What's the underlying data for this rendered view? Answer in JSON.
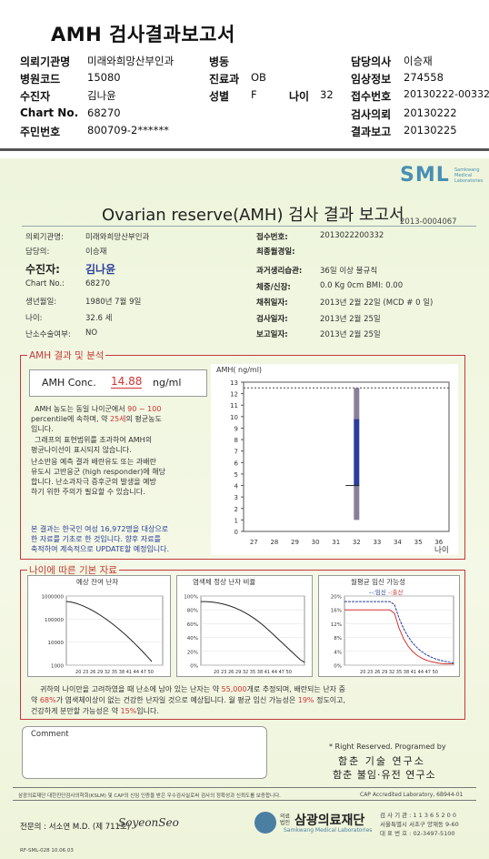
{
  "header": {
    "title": "AMH 검사결과보고서",
    "left_rows": [
      {
        "label": "의뢰기관명",
        "value": "미래와희망산부인과"
      },
      {
        "label": "병원코드",
        "value": "15080"
      },
      {
        "label": "수진자",
        "value": "김나윤"
      },
      {
        "label": "Chart No.",
        "value": "68270"
      },
      {
        "label": "주민번호",
        "value": "800709-2******"
      }
    ],
    "mid_rows": [
      {
        "label": "병동",
        "value": ""
      },
      {
        "label": "진료과",
        "value": "OB"
      },
      {
        "label": "성별",
        "value": "F"
      }
    ],
    "age_label": "나이",
    "age_value": "32",
    "right_rows": [
      {
        "label": "담당의사",
        "value": "이승재"
      },
      {
        "label": "임상정보",
        "value": "274558"
      },
      {
        "label": "접수번호",
        "value": "20130222-00332"
      },
      {
        "label": "검사의뢰",
        "value": "20130222"
      },
      {
        "label": "결과보고",
        "value": "20130225"
      }
    ]
  },
  "report": {
    "logo": "SML",
    "logo_sub": "Samkwang Medical Laboratories",
    "title": "Ovarian reserve(AMH) 검사 결과 보고서",
    "doc_no": "2013-0004067",
    "info_left": [
      {
        "label": "의뢰기관명:",
        "value": "미래와희망산부인과"
      },
      {
        "label": "담당의:",
        "value": "이승재"
      },
      {
        "label": "수진자:",
        "value": "김나윤"
      },
      {
        "label": "Chart No.:",
        "value": "68270"
      },
      {
        "label": "생년월일:",
        "value": "1980년 7월 9일"
      },
      {
        "label": "나이:",
        "value": "32.6 세"
      },
      {
        "label": "난소수술여부:",
        "value": "NO"
      }
    ],
    "info_right": [
      {
        "label": "접수번호:",
        "value": "2013022200332"
      },
      {
        "label": "최종월경일:",
        "value": ""
      },
      {
        "label": "과거생리습관:",
        "value": "36일 이상 불규칙"
      },
      {
        "label": "체중/신장:",
        "value": "0.0  Kg        0cm    BMI:   0.00"
      },
      {
        "label": "채취일자:",
        "value": "2013년 2월 22일   (MCD #  0 일)"
      },
      {
        "label": "검사일자:",
        "value": "2013년 2월 25일"
      },
      {
        "label": "보고일자:",
        "value": "2013년 2월 25일"
      }
    ],
    "amh_section_title": "AMH 결과 및 분석",
    "amh_label": "AMH Conc.",
    "amh_value": "14.88",
    "amh_unit": "ng/ml",
    "analysis": {
      "l1a": "AMH 농도는 동일 나이군에서",
      "l1b": "90 ~ 100",
      "l2a": "percentile에 속하며, 약",
      "l2b": "25세",
      "l2c": "의 평균농도",
      "l3": "입니다.",
      "l4": "그래프의 표현범위를 초과하여 AMH의",
      "l5": "평균나이선이 표시되지 않습니다.",
      "l6": "난소반응 예측 결과 배란유도 또는 과배란",
      "l7": "유도시 고반응군 (high responder)에 해당",
      "l8": "합니다. 난소과자극 증후군의 발생을 예방",
      "l9": "하기 위한 주의가 필요할 수 있습니다.",
      "n1": "본 결과는 한국인 여성 16,972명을 대상으로",
      "n2": "한 자료를 기초로 한 것입니다. 향후 자료를",
      "n3": "축적하여 계속적으로 UPDATE할 예정입니다."
    },
    "chart_title": "AMH( ng/ml)",
    "age_axis_label": "나이",
    "basic_section_title": "나이에 따른 기본 자료",
    "mini1_title": "예상 잔여 난자",
    "mini2_title": "염색체 정상 난자 비율",
    "mini3_title": "월평균 임신 가능성",
    "mini3_legend_a": "임신",
    "mini3_legend_b": "출산",
    "mini1_yticks": [
      "1000000",
      "100000",
      "10000",
      "1000"
    ],
    "mini2_yticks": [
      "100%",
      "80%",
      "60%",
      "40%",
      "20%",
      "0%"
    ],
    "mini3_yticks": [
      "20%",
      "16%",
      "12%",
      "8%",
      "4%",
      "0%"
    ],
    "mini_xticks": "20 23 26 29 32 35 38 41 44 47 50",
    "summary": {
      "s1a": "귀하의 나이만을 고려하였을 때 난소에 남아 있는 난자는 약",
      "s1b": "55,000",
      "s1c": "개로 추정되며, 배란되는 난자 중",
      "s2a": "약",
      "s2b": "68%",
      "s2c": "가 염색체이상이 없는 건강한 난자일 것으로 예상됩니다. 월 평균 임신 가능성은",
      "s2d": "19%",
      "s2e": "정도이고,",
      "s3a": "건강하게 분만할 가능성은 약",
      "s3b": "15%",
      "s3c": "입니다."
    },
    "comment_label": "Comment",
    "rights": "* Right Reserved. Programed by",
    "org1": "함춘 기술 연구소",
    "org2": "함춘 불임·유전 연구소",
    "cert_left": "삼광의료재단 대한진단검사의학회(KSLM) 및 CAP의 신임 인증을 받은 우수검사실로써 검사의 정확성과 신뢰도를 보증합니다.",
    "cert_right": "CAP  Accredited  Laboratory,  6B944-01",
    "specialist": "전문의 : 서소연 M.D. (제 711호)",
    "signature": "SoyeonSeo",
    "foundation": "삼광의료재단",
    "foundation_prefix": "의료법인",
    "foundation_sub": "Samkwang Medical Laboratories",
    "contact1": "검 사 기 관 : 1 1 3 6 5 2 0 0",
    "contact2": "서울특별시 서초구 양재동 9-60",
    "contact3": "대 표 번 호 : 02-3497-5100",
    "form_no": "RF-SML-028 10.06.03"
  },
  "chart_data": {
    "type": "bar",
    "title": "AMH( ng/ml)",
    "xlabel": "나이",
    "ylabel": "AMH( ng/ml)",
    "x_ticks": [
      27,
      28,
      29,
      30,
      31,
      32,
      33,
      34,
      35,
      36
    ],
    "ylim": [
      0,
      13
    ],
    "y_ticks": [
      0,
      1,
      2,
      3,
      4,
      5,
      6,
      7,
      8,
      9,
      10,
      11,
      12,
      13
    ],
    "reference_line": 12.5,
    "range_bar": {
      "age": 32,
      "segments": [
        {
          "from": 1.0,
          "to": 4.0,
          "color": "#8a7f98"
        },
        {
          "from": 4.0,
          "to": 9.8,
          "color": "#2c3d9b"
        },
        {
          "from": 9.8,
          "to": 12.5,
          "color": "#8a7f98"
        }
      ],
      "marker": 4.0
    }
  }
}
